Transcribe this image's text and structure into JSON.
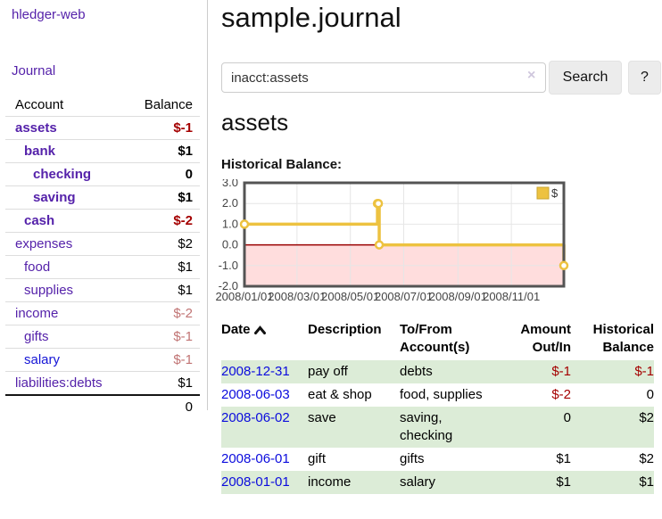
{
  "app": {
    "brand": "hledger-web",
    "nav_journal": "Journal"
  },
  "sidebar": {
    "columns": {
      "account": "Account",
      "balance": "Balance"
    },
    "accounts": [
      {
        "name": "assets",
        "indent": 1,
        "balance": "$-1",
        "bold": true,
        "balance_color": "negative-strong"
      },
      {
        "name": "bank",
        "indent": 2,
        "balance": "$1",
        "bold": true,
        "balance_color": "normal"
      },
      {
        "name": "checking",
        "indent": 3,
        "balance": "0",
        "bold": true,
        "balance_color": "normal"
      },
      {
        "name": "saving",
        "indent": 3,
        "balance": "$1",
        "bold": true,
        "balance_color": "normal"
      },
      {
        "name": "cash",
        "indent": 2,
        "balance": "$-2",
        "bold": true,
        "balance_color": "negative-strong"
      },
      {
        "name": "expenses",
        "indent": 1,
        "balance": "$2",
        "bold": false,
        "balance_color": "normal"
      },
      {
        "name": "food",
        "indent": 2,
        "balance": "$1",
        "bold": false,
        "balance_color": "normal"
      },
      {
        "name": "supplies",
        "indent": 2,
        "balance": "$1",
        "bold": false,
        "balance_color": "normal"
      },
      {
        "name": "income",
        "indent": 1,
        "balance": "$-2",
        "bold": false,
        "balance_color": "negative-soft"
      },
      {
        "name": "gifts",
        "indent": 2,
        "balance": "$-1",
        "bold": false,
        "balance_color": "negative-soft"
      },
      {
        "name": "salary",
        "indent": 2,
        "balance": "$-1",
        "bold": false,
        "balance_color": "negative-soft",
        "link_color": "blue"
      },
      {
        "name": "liabilities:debts",
        "indent": 1,
        "balance": "$1",
        "bold": false,
        "balance_color": "normal"
      }
    ],
    "total": "0"
  },
  "header": {
    "title": "sample.journal"
  },
  "search": {
    "value": "inacct:assets",
    "clear_icon": "×",
    "button": "Search",
    "help_button": "?"
  },
  "account_page": {
    "heading": "assets",
    "chart_label": "Historical Balance:"
  },
  "chart_data": {
    "type": "line",
    "title": "Historical Balance",
    "step": true,
    "ylim": [
      -2,
      3
    ],
    "xlim_days": [
      0,
      365
    ],
    "y_ticks": [
      "3.0",
      "2.0",
      "1.0",
      "0.0",
      "-1.0",
      "-2.0"
    ],
    "x_ticks": [
      "2008/01/01",
      "2008/03/01",
      "2008/05/01",
      "2008/07/01",
      "2008/09/01",
      "2008/11/01"
    ],
    "x_tick_days": [
      0,
      60,
      121,
      182,
      244,
      305
    ],
    "series": [
      {
        "name": "$",
        "color": "#edc240",
        "points": [
          {
            "date": "2008-01-01",
            "day": 0,
            "value": 1
          },
          {
            "date": "2008-06-01",
            "day": 152,
            "value": 2
          },
          {
            "date": "2008-06-02",
            "day": 153,
            "value": 2
          },
          {
            "date": "2008-06-03",
            "day": 154,
            "value": 0
          },
          {
            "date": "2008-12-31",
            "day": 365,
            "value": -1
          }
        ]
      }
    ],
    "legend": "$",
    "legend_position": "top-right",
    "grid": true,
    "negative_fill": "#ffdddd",
    "zero_line_color": "#990000",
    "border_color": "#545454",
    "grid_color": "#e6e6e6"
  },
  "register": {
    "columns": {
      "date": "Date",
      "description": "Description",
      "account": "To/From Account(s)",
      "amount": "Amount Out/In",
      "balance": "Historical Balance"
    },
    "sort_icon": "chevron-up",
    "rows": [
      {
        "date": "2008-12-31",
        "description": "pay off",
        "accounts": "debts",
        "amount": "$-1",
        "amount_negative": true,
        "balance": "$-1",
        "balance_negative": true
      },
      {
        "date": "2008-06-03",
        "description": "eat & shop",
        "accounts": "food, supplies",
        "amount": "$-2",
        "amount_negative": true,
        "balance": "0",
        "balance_negative": false
      },
      {
        "date": "2008-06-02",
        "description": "save",
        "accounts": "saving, checking",
        "amount": "0",
        "amount_negative": false,
        "balance": "$2",
        "balance_negative": false
      },
      {
        "date": "2008-06-01",
        "description": "gift",
        "accounts": "gifts",
        "amount": "$1",
        "amount_negative": false,
        "balance": "$2",
        "balance_negative": false
      },
      {
        "date": "2008-01-01",
        "description": "income",
        "accounts": "salary",
        "amount": "$1",
        "amount_negative": false,
        "balance": "$1",
        "balance_negative": false
      }
    ]
  },
  "colors": {
    "link_purple": "#5522aa",
    "link_blue": "#0b0bdd",
    "negative_strong": "#a40000",
    "negative_soft": "#c17474",
    "row_green": "#dcecd7",
    "series_gold": "#edc240"
  }
}
